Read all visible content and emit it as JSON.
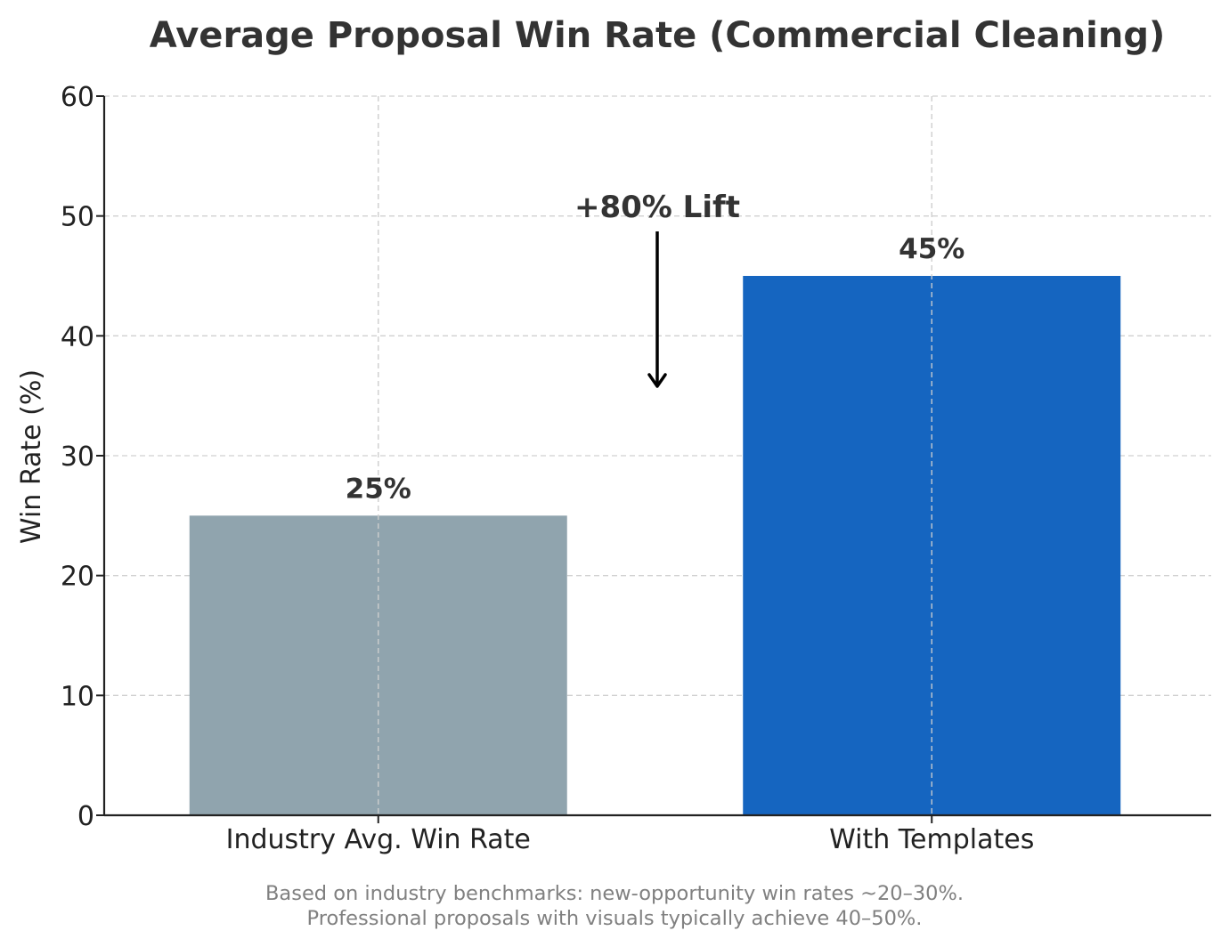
{
  "chart_data": {
    "type": "bar",
    "title": "Average Proposal Win Rate (Commercial Cleaning)",
    "xlabel": "",
    "ylabel": "Win Rate (%)",
    "categories": [
      "Industry Avg. Win Rate",
      "With Templates"
    ],
    "values": [
      25,
      45
    ],
    "data_labels": [
      "25%",
      "45%"
    ],
    "bar_colors": [
      "#90a4ae",
      "#1565c0"
    ],
    "ylim": [
      0,
      60
    ],
    "yticks": [
      0,
      10,
      20,
      30,
      40,
      50,
      60
    ],
    "grid": true,
    "legend": "none",
    "annotation": {
      "text": "+80% Lift"
    },
    "footnote": [
      "Based on industry benchmarks: new-opportunity win rates ~20–30%.",
      "Professional proposals with visuals typically achieve 40–50%."
    ]
  }
}
